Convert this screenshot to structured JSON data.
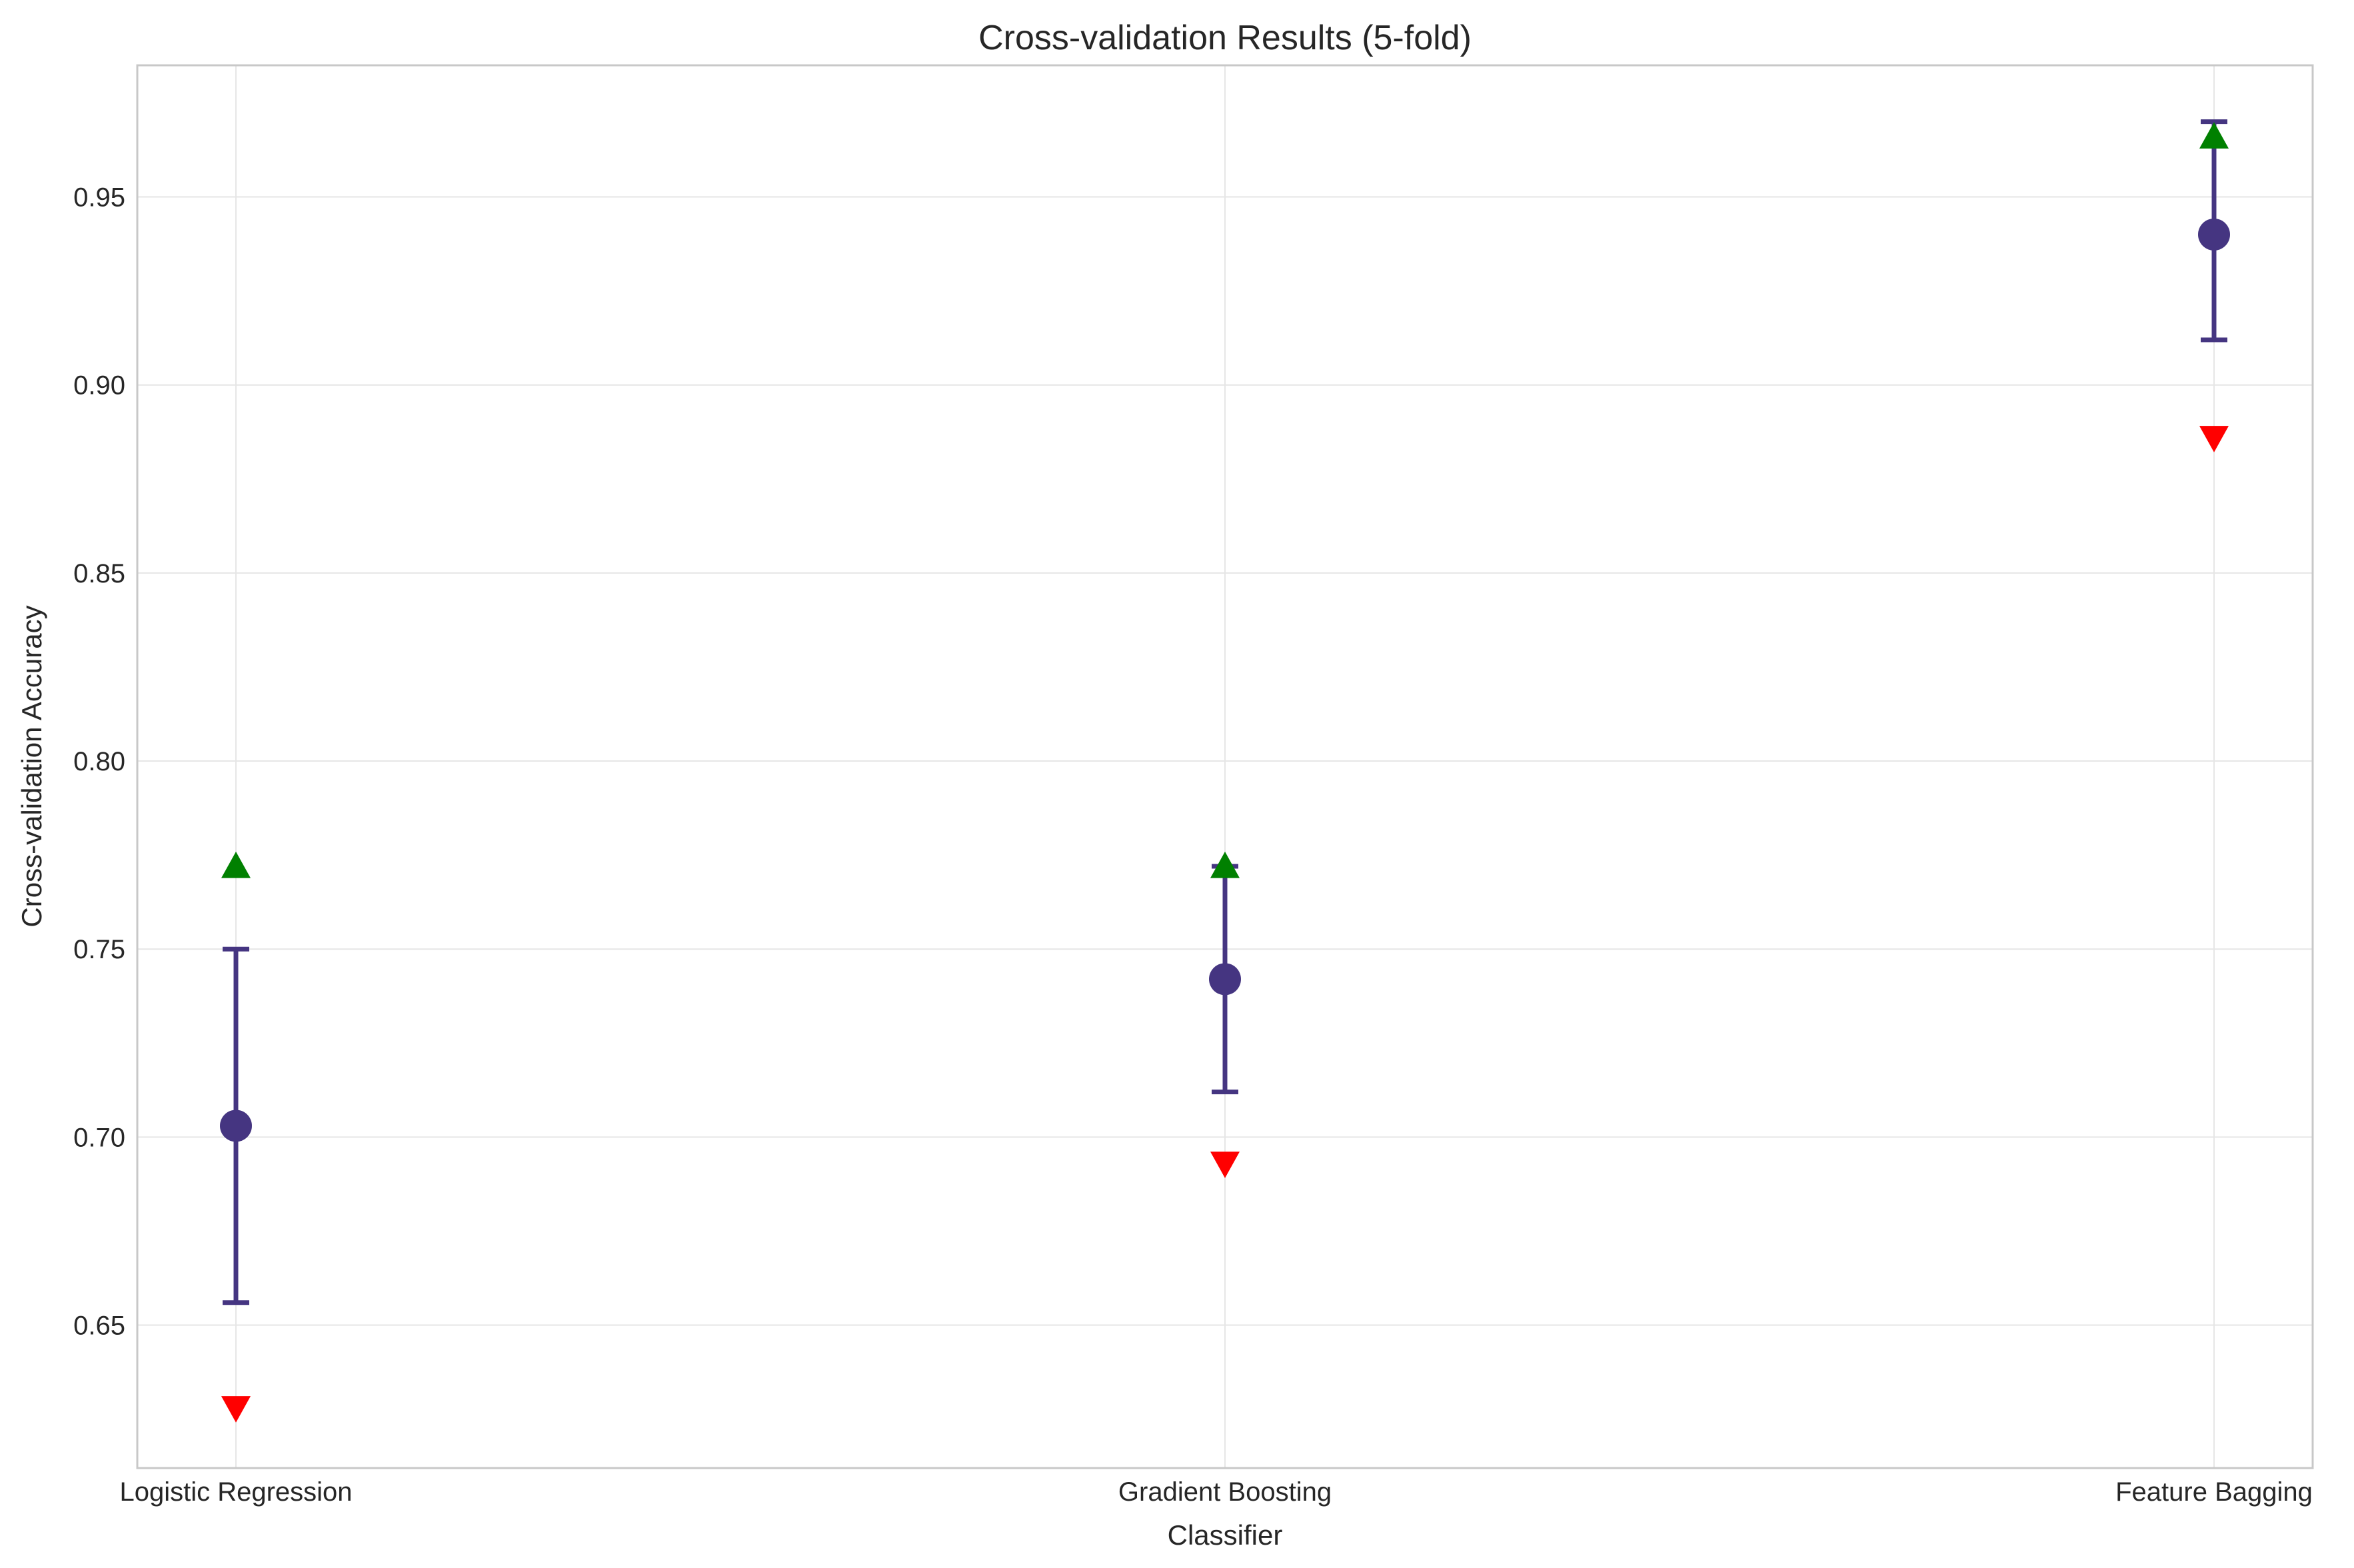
{
  "chart_data": {
    "type": "scatter",
    "title": "Cross-validation Results (5-fold)",
    "xlabel": "Classifier",
    "ylabel": "Cross-validation Accuracy",
    "categories": [
      "Logistic Regression",
      "Gradient Boosting",
      "Feature Bagging"
    ],
    "mean": [
      0.703,
      0.742,
      0.94
    ],
    "error_lower": [
      0.656,
      0.712,
      0.912
    ],
    "error_upper": [
      0.75,
      0.772,
      0.97
    ],
    "max": [
      0.772,
      0.772,
      0.966
    ],
    "min": [
      0.628,
      0.693,
      0.886
    ],
    "ylim": [
      0.612,
      0.985
    ],
    "yticks": [
      0.65,
      0.7,
      0.75,
      0.8,
      0.85,
      0.9,
      0.95
    ],
    "ytick_labels": [
      "0.65",
      "0.70",
      "0.75",
      "0.80",
      "0.85",
      "0.90",
      "0.95"
    ],
    "grid": true,
    "colors": {
      "mean": "#453581",
      "max": "#008000",
      "min": "#ff0000"
    }
  }
}
